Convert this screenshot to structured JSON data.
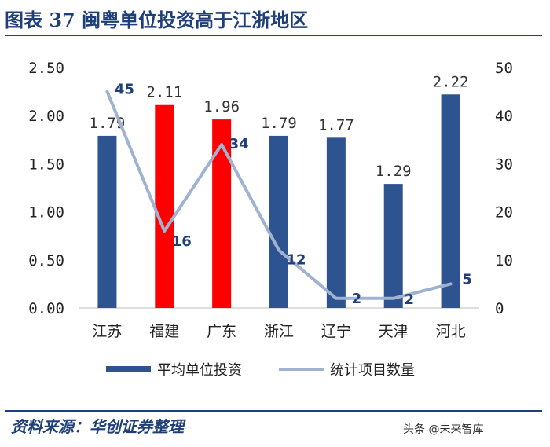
{
  "header": {
    "title": "图表 37   闽粤单位投资高于江浙地区"
  },
  "footer": {
    "source": "资料来源：华创证券整理",
    "watermark": "头条 @未来智库"
  },
  "colors": {
    "bar": "#2e5391",
    "highlight": "#ff0000",
    "line": "#9fb3d1",
    "text": "#1f3f78"
  },
  "chart_data": {
    "type": "bar",
    "categories": [
      "江苏",
      "福建",
      "广东",
      "浙江",
      "辽宁",
      "天津",
      "河北"
    ],
    "series": [
      {
        "name": "平均单位投资",
        "type": "bar",
        "axis": "left",
        "values": [
          1.79,
          2.11,
          1.96,
          1.79,
          1.77,
          1.29,
          2.22
        ],
        "labels": [
          "1.79",
          "2.11",
          "1.96",
          "1.79",
          "1.77",
          "1.29",
          "2.22"
        ],
        "highlighted": [
          false,
          true,
          true,
          false,
          false,
          false,
          false
        ]
      },
      {
        "name": "统计项目数量",
        "type": "line",
        "axis": "right",
        "values": [
          45,
          16,
          34,
          12,
          2,
          2,
          5
        ],
        "labels": [
          "45",
          "16",
          "34",
          "12",
          "2",
          "2",
          "5"
        ]
      }
    ],
    "y_left": {
      "min": 0,
      "max": 2.5,
      "ticks": [
        "0.00",
        "0.50",
        "1.00",
        "1.50",
        "2.00",
        "2.50"
      ]
    },
    "y_right": {
      "min": 0,
      "max": 50,
      "ticks": [
        "0",
        "10",
        "20",
        "30",
        "40",
        "50"
      ]
    },
    "legend_position": "bottom",
    "grid": false
  }
}
